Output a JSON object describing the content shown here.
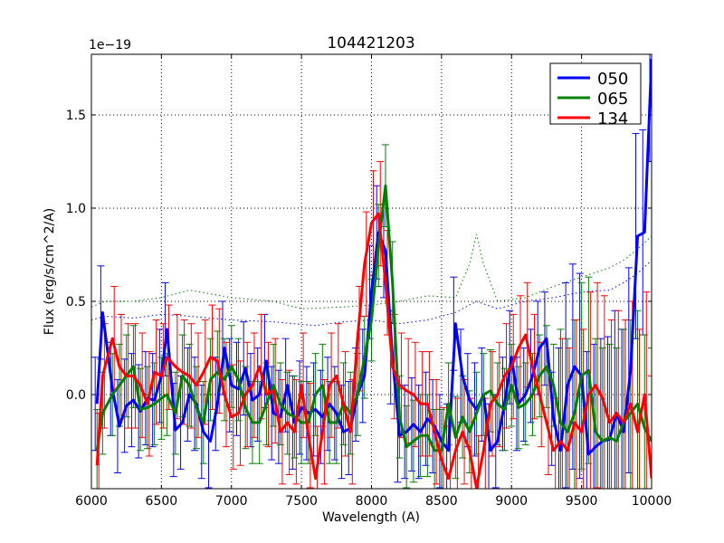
{
  "chart_data": {
    "type": "line",
    "title": "104421203",
    "xlabel": "Wavelength (A)",
    "ylabel": "Flux (erg/s/cm^2/A)",
    "y_offset_label": "1e−19",
    "xlim": [
      6000,
      10000
    ],
    "ylim": [
      -0.505,
      1.825
    ],
    "xticks": [
      6000,
      6500,
      7000,
      7500,
      8000,
      8500,
      9000,
      9500,
      10000
    ],
    "xtick_labels": [
      "6000",
      "6500",
      "7000",
      "7500",
      "8000",
      "8500",
      "9000",
      "9500",
      "10000"
    ],
    "yticks": [
      0,
      0.5,
      1.0,
      1.5
    ],
    "ytick_labels": [
      "0.0",
      "0.5",
      "1.0",
      "1.5"
    ],
    "grid": true,
    "legend_position": "top-right",
    "x": [
      6040,
      6080,
      6150,
      6200,
      6250,
      6300,
      6350,
      6400,
      6450,
      6500,
      6540,
      6600,
      6650,
      6700,
      6750,
      6800,
      6850,
      6900,
      6950,
      7000,
      7050,
      7100,
      7150,
      7200,
      7250,
      7300,
      7350,
      7400,
      7450,
      7500,
      7550,
      7600,
      7650,
      7700,
      7750,
      7800,
      7850,
      7900,
      7950,
      8000,
      8050,
      8100,
      8150,
      8200,
      8250,
      8300,
      8350,
      8400,
      8450,
      8500,
      8550,
      8600,
      8650,
      8700,
      8750,
      8800,
      8850,
      8900,
      8950,
      9000,
      9050,
      9100,
      9150,
      9200,
      9250,
      9300,
      9350,
      9400,
      9450,
      9500,
      9550,
      9600,
      9650,
      9700,
      9750,
      9800,
      9850,
      9900,
      9950,
      10000
    ],
    "series": [
      {
        "name": "050",
        "color": "#0000ff",
        "yerr_segments": [
          [
            6000,
            9300,
            0.25
          ],
          [
            9300,
            10000,
            0.55
          ]
        ],
        "values": [
          -0.05,
          0.44,
          0.03,
          -0.17,
          -0.06,
          -0.03,
          -0.09,
          -0.02,
          -0.03,
          0.1,
          0.35,
          -0.19,
          -0.15,
          0.0,
          -0.05,
          -0.2,
          -0.25,
          -0.05,
          0.25,
          0.05,
          0.03,
          0.14,
          -0.03,
          0.0,
          0.18,
          -0.1,
          -0.12,
          0.05,
          -0.15,
          -0.07,
          -0.1,
          -0.08,
          -0.12,
          -0.05,
          -0.1,
          -0.2,
          -0.18,
          0.0,
          0.1,
          0.55,
          0.87,
          0.77,
          0.2,
          -0.22,
          -0.2,
          -0.16,
          -0.2,
          -0.13,
          -0.17,
          -0.25,
          -0.3,
          0.38,
          0.1,
          -0.03,
          -0.08,
          0.0,
          -0.3,
          -0.25,
          -0.05,
          0.2,
          -0.05,
          0.0,
          0.1,
          0.25,
          0.3,
          -0.13,
          -0.3,
          0.05,
          0.15,
          0.1,
          -0.32,
          -0.28,
          -0.25,
          -0.24,
          -0.1,
          -0.2,
          0.13,
          0.85,
          0.87,
          1.8
        ]
      },
      {
        "name": "065",
        "color": "#008000",
        "yerr_segments": [
          [
            6000,
            9300,
            0.22
          ],
          [
            9300,
            10000,
            0.5
          ]
        ],
        "values": [
          -0.3,
          -0.1,
          0.0,
          0.05,
          0.1,
          0.15,
          -0.08,
          -0.07,
          -0.05,
          -0.02,
          0.0,
          -0.1,
          0.1,
          0.05,
          -0.07,
          -0.15,
          0.08,
          0.12,
          0.08,
          0.15,
          0.08,
          -0.07,
          -0.15,
          -0.15,
          -0.05,
          0.05,
          -0.05,
          -0.1,
          -0.12,
          -0.15,
          -0.15,
          0.0,
          0.05,
          -0.15,
          -0.15,
          -0.05,
          -0.1,
          0.0,
          0.2,
          0.4,
          0.8,
          1.12,
          0.6,
          -0.12,
          -0.28,
          -0.25,
          -0.22,
          -0.22,
          -0.3,
          -0.3,
          -0.05,
          -0.23,
          -0.12,
          -0.2,
          -0.1,
          0.0,
          0.02,
          -0.05,
          -0.08,
          0.05,
          -0.07,
          -0.05,
          0.0,
          0.1,
          0.15,
          0.05,
          -0.15,
          -0.2,
          -0.1,
          0.1,
          0.13,
          -0.2,
          -0.25,
          -0.23,
          -0.25,
          -0.15,
          -0.1,
          -0.05,
          -0.18,
          -0.25
        ]
      },
      {
        "name": "134",
        "color": "#ff0000",
        "yerr_segments": [
          [
            6000,
            9300,
            0.28
          ],
          [
            9300,
            10000,
            0.55
          ]
        ],
        "values": [
          -0.38,
          0.1,
          0.3,
          0.15,
          0.1,
          0.1,
          0.05,
          -0.05,
          0.12,
          0.1,
          0.2,
          0.15,
          0.12,
          0.1,
          0.05,
          0.12,
          0.2,
          0.18,
          0.0,
          -0.12,
          -0.1,
          0.0,
          0.05,
          0.15,
          0.0,
          0.02,
          -0.2,
          -0.15,
          -0.2,
          0.05,
          -0.22,
          -0.45,
          -0.2,
          0.05,
          0.1,
          -0.05,
          -0.2,
          0.3,
          0.7,
          0.92,
          0.97,
          0.6,
          0.15,
          0.05,
          0.02,
          0.0,
          -0.05,
          -0.05,
          -0.2,
          -0.35,
          -0.45,
          -0.3,
          -0.2,
          -0.3,
          -0.5,
          -0.3,
          -0.05,
          0.0,
          0.1,
          0.15,
          0.25,
          0.32,
          0.15,
          0.0,
          -0.15,
          -0.3,
          -0.25,
          -0.3,
          -0.15,
          -0.2,
          0.0,
          0.05,
          -0.02,
          -0.15,
          -0.1,
          -0.15,
          -0.05,
          -0.2,
          0.0,
          -0.45
        ]
      }
    ],
    "noise_curves": [
      {
        "color": "#0000ff",
        "x": [
          6000,
          6100,
          6300,
          6500,
          6700,
          7000,
          7300,
          7600,
          7800,
          8000,
          8200,
          8400,
          8600,
          8750,
          8900,
          9100,
          9300,
          9500,
          9700,
          9800,
          9900,
          10000
        ],
        "values": [
          0.4,
          0.42,
          0.41,
          0.43,
          0.42,
          0.4,
          0.39,
          0.37,
          0.39,
          0.4,
          0.38,
          0.4,
          0.44,
          0.5,
          0.46,
          0.5,
          0.52,
          0.55,
          0.56,
          0.6,
          0.65,
          0.72
        ]
      },
      {
        "color": "#008000",
        "x": [
          6000,
          6100,
          6300,
          6500,
          6700,
          7000,
          7300,
          7500,
          7800,
          8000,
          8200,
          8400,
          8600,
          8700,
          8750,
          8800,
          8900,
          9100,
          9300,
          9500,
          9700,
          9800,
          9900,
          10000
        ],
        "values": [
          0.47,
          0.5,
          0.5,
          0.52,
          0.56,
          0.52,
          0.5,
          0.46,
          0.47,
          0.48,
          0.5,
          0.53,
          0.52,
          0.7,
          0.86,
          0.7,
          0.5,
          0.52,
          0.58,
          0.63,
          0.68,
          0.72,
          0.78,
          0.85
        ]
      }
    ]
  }
}
